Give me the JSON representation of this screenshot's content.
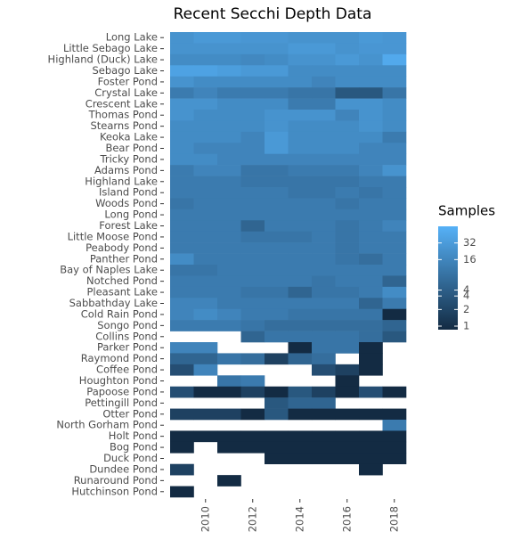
{
  "chart_data": {
    "type": "heatmap",
    "title": "Recent Secchi Depth Data",
    "legend_title": "Samples",
    "x": [
      2009,
      2010,
      2011,
      2012,
      2013,
      2014,
      2015,
      2016,
      2017,
      2018
    ],
    "xlim": [
      2008.5,
      2018.5
    ],
    "xticks": [
      2010,
      2012,
      2014,
      2016,
      2018
    ],
    "y": [
      "Long Lake",
      "Little Sebago Lake",
      "Highland (Duck) Lake",
      "Sebago Lake",
      "Foster Pond",
      "Crystal Lake",
      "Crescent Lake",
      "Thomas Pond",
      "Stearns Pond",
      "Keoka Lake",
      "Bear Pond",
      "Tricky Pond",
      "Adams Pond",
      "Highland Lake",
      "Island Pond",
      "Woods Pond",
      "Long Pond",
      "Forest Lake",
      "Little Moose Pond",
      "Peabody Pond",
      "Panther Pond",
      "Bay of Naples Lake",
      "Notched Pond",
      "Pleasant Lake",
      "Sabbathday Lake",
      "Cold Rain Pond",
      "Songo Pond",
      "Collins Pond",
      "Parker Pond",
      "Raymond Pond",
      "Coffee Pond",
      "Houghton Pond",
      "Papoose Pond",
      "Pettingill Pond",
      "Otter Pond",
      "North Gorham Pond",
      "Holt Pond",
      "Bog Pond",
      "Duck Pond",
      "Dundee Pond",
      "Runaround Pond",
      "Hutchinson Pond"
    ],
    "values": [
      [
        25,
        30,
        30,
        28,
        28,
        25,
        25,
        25,
        30,
        28
      ],
      [
        25,
        25,
        25,
        25,
        25,
        30,
        30,
        25,
        28,
        28
      ],
      [
        20,
        20,
        20,
        18,
        20,
        25,
        25,
        30,
        25,
        50
      ],
      [
        40,
        40,
        35,
        30,
        30,
        20,
        20,
        20,
        20,
        20
      ],
      [
        25,
        20,
        20,
        20,
        20,
        20,
        16,
        20,
        20,
        20
      ],
      [
        12,
        16,
        12,
        12,
        12,
        10,
        10,
        4,
        4,
        10
      ],
      [
        25,
        25,
        20,
        20,
        20,
        12,
        12,
        25,
        25,
        20
      ],
      [
        25,
        20,
        20,
        20,
        25,
        25,
        25,
        16,
        25,
        20
      ],
      [
        20,
        20,
        20,
        20,
        25,
        20,
        20,
        20,
        25,
        20
      ],
      [
        20,
        20,
        20,
        16,
        30,
        20,
        20,
        20,
        20,
        12
      ],
      [
        20,
        16,
        16,
        16,
        30,
        20,
        20,
        20,
        16,
        16
      ],
      [
        20,
        20,
        16,
        16,
        16,
        16,
        16,
        16,
        16,
        16
      ],
      [
        12,
        16,
        16,
        10,
        10,
        12,
        12,
        12,
        16,
        25
      ],
      [
        12,
        12,
        12,
        10,
        10,
        10,
        10,
        10,
        12,
        12
      ],
      [
        12,
        12,
        12,
        12,
        12,
        10,
        10,
        12,
        10,
        12
      ],
      [
        10,
        12,
        12,
        12,
        12,
        12,
        12,
        10,
        12,
        12
      ],
      [
        12,
        12,
        12,
        12,
        12,
        12,
        12,
        12,
        12,
        12
      ],
      [
        12,
        12,
        12,
        6,
        12,
        12,
        12,
        10,
        12,
        16
      ],
      [
        12,
        12,
        12,
        10,
        10,
        10,
        12,
        10,
        12,
        12
      ],
      [
        12,
        12,
        12,
        12,
        12,
        12,
        12,
        10,
        12,
        12
      ],
      [
        20,
        12,
        12,
        12,
        12,
        12,
        12,
        10,
        8,
        12
      ],
      [
        10,
        10,
        12,
        12,
        12,
        12,
        12,
        12,
        12,
        12
      ],
      [
        12,
        12,
        12,
        12,
        12,
        12,
        10,
        12,
        12,
        6
      ],
      [
        12,
        12,
        12,
        10,
        10,
        6,
        10,
        10,
        12,
        20
      ],
      [
        16,
        16,
        12,
        12,
        12,
        12,
        12,
        12,
        6,
        12
      ],
      [
        16,
        20,
        16,
        12,
        12,
        10,
        10,
        10,
        10,
        1
      ],
      [
        12,
        12,
        12,
        10,
        8,
        8,
        8,
        8,
        8,
        6
      ],
      [
        null,
        null,
        null,
        6,
        10,
        10,
        10,
        10,
        8,
        4
      ],
      [
        16,
        16,
        null,
        null,
        null,
        1,
        10,
        10,
        1,
        null
      ],
      [
        6,
        6,
        10,
        8,
        2,
        6,
        8,
        null,
        1,
        null
      ],
      [
        3,
        16,
        null,
        null,
        null,
        null,
        3,
        2,
        1,
        null
      ],
      [
        null,
        null,
        10,
        12,
        null,
        null,
        null,
        1,
        null,
        null
      ],
      [
        3,
        1,
        1,
        2,
        1,
        4,
        2,
        1,
        3,
        1
      ],
      [
        null,
        null,
        null,
        null,
        4,
        6,
        6,
        null,
        null,
        null
      ],
      [
        2,
        2,
        2,
        1,
        4,
        1,
        1,
        1,
        1,
        1
      ],
      [
        null,
        null,
        null,
        null,
        null,
        null,
        null,
        null,
        null,
        12
      ],
      [
        1,
        1,
        1,
        1,
        1,
        1,
        1,
        1,
        1,
        1
      ],
      [
        1,
        null,
        1,
        1,
        1,
        1,
        1,
        1,
        1,
        1
      ],
      [
        null,
        null,
        null,
        null,
        1,
        1,
        1,
        1,
        1,
        1
      ],
      [
        2,
        null,
        null,
        null,
        null,
        null,
        null,
        null,
        1,
        null
      ],
      [
        null,
        null,
        1,
        null,
        null,
        null,
        null,
        null,
        null,
        null
      ],
      [
        1,
        null,
        null,
        null,
        null,
        null,
        null,
        null,
        null,
        null
      ]
    ],
    "clim": [
      1,
      64
    ],
    "log_scale": true,
    "low_color": "#132B43",
    "high_color": "#56B1F7",
    "legend_ticks": [
      32,
      16,
      {
        "value": 4.49,
        "label": "4"
      },
      {
        "value": 3.51,
        "label": "4"
      },
      2,
      1
    ]
  }
}
